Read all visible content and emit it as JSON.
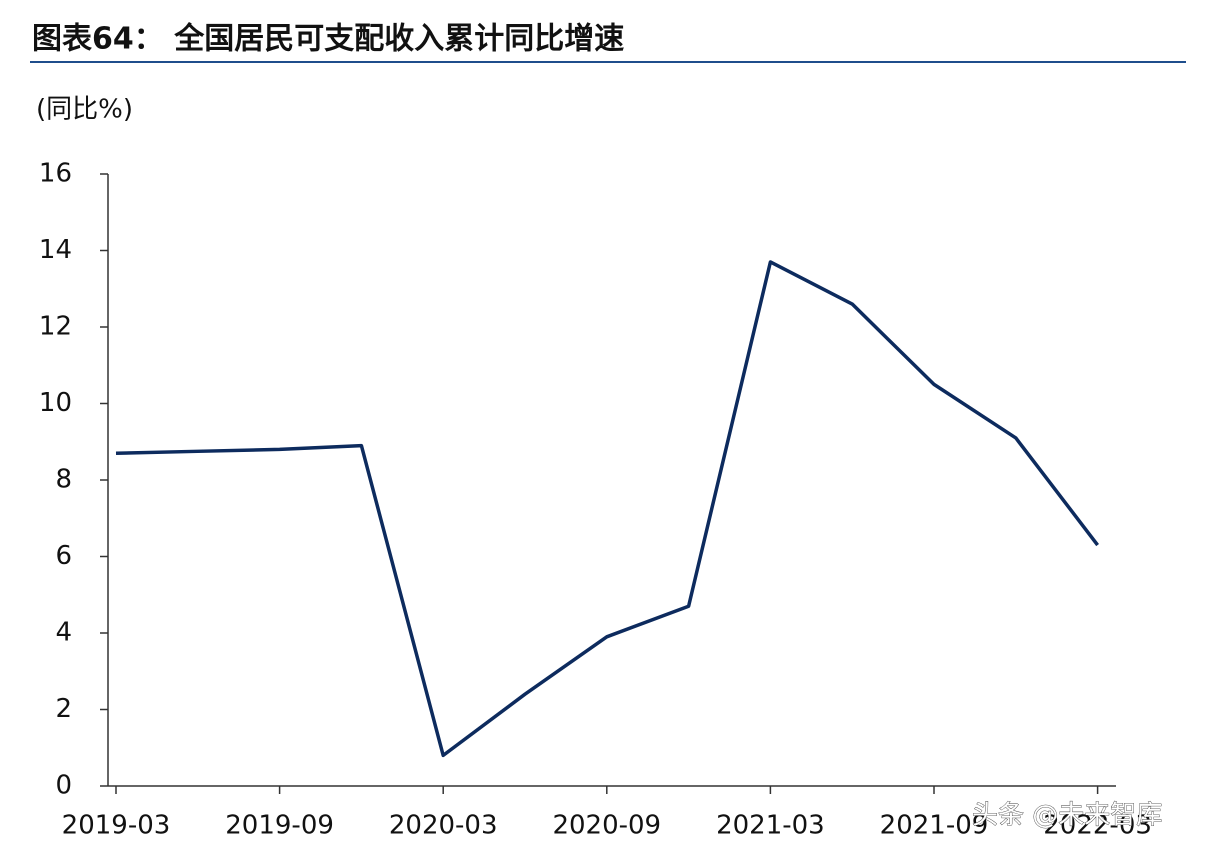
{
  "chart_data": {
    "type": "line",
    "title": "图表64：  全国居民可支配收入累计同比增速",
    "y_label": "(同比%)",
    "categories": [
      "2019-03",
      null,
      "2019-09",
      null,
      "2020-03",
      null,
      "2020-09",
      null,
      "2021-03",
      null,
      "2021-09",
      null,
      "2022-03"
    ],
    "series": [
      {
        "name": "全国居民可支配收入累计同比",
        "color": "#0d2b5e",
        "values": [
          8.7,
          8.75,
          8.8,
          8.9,
          0.8,
          2.4,
          3.9,
          4.7,
          13.7,
          12.6,
          10.5,
          9.1,
          6.3
        ]
      }
    ],
    "ylim": [
      0,
      16
    ],
    "yticks": [
      0,
      2,
      4,
      6,
      8,
      10,
      12,
      14,
      16
    ],
    "watermark": "头条 @未来智库"
  }
}
